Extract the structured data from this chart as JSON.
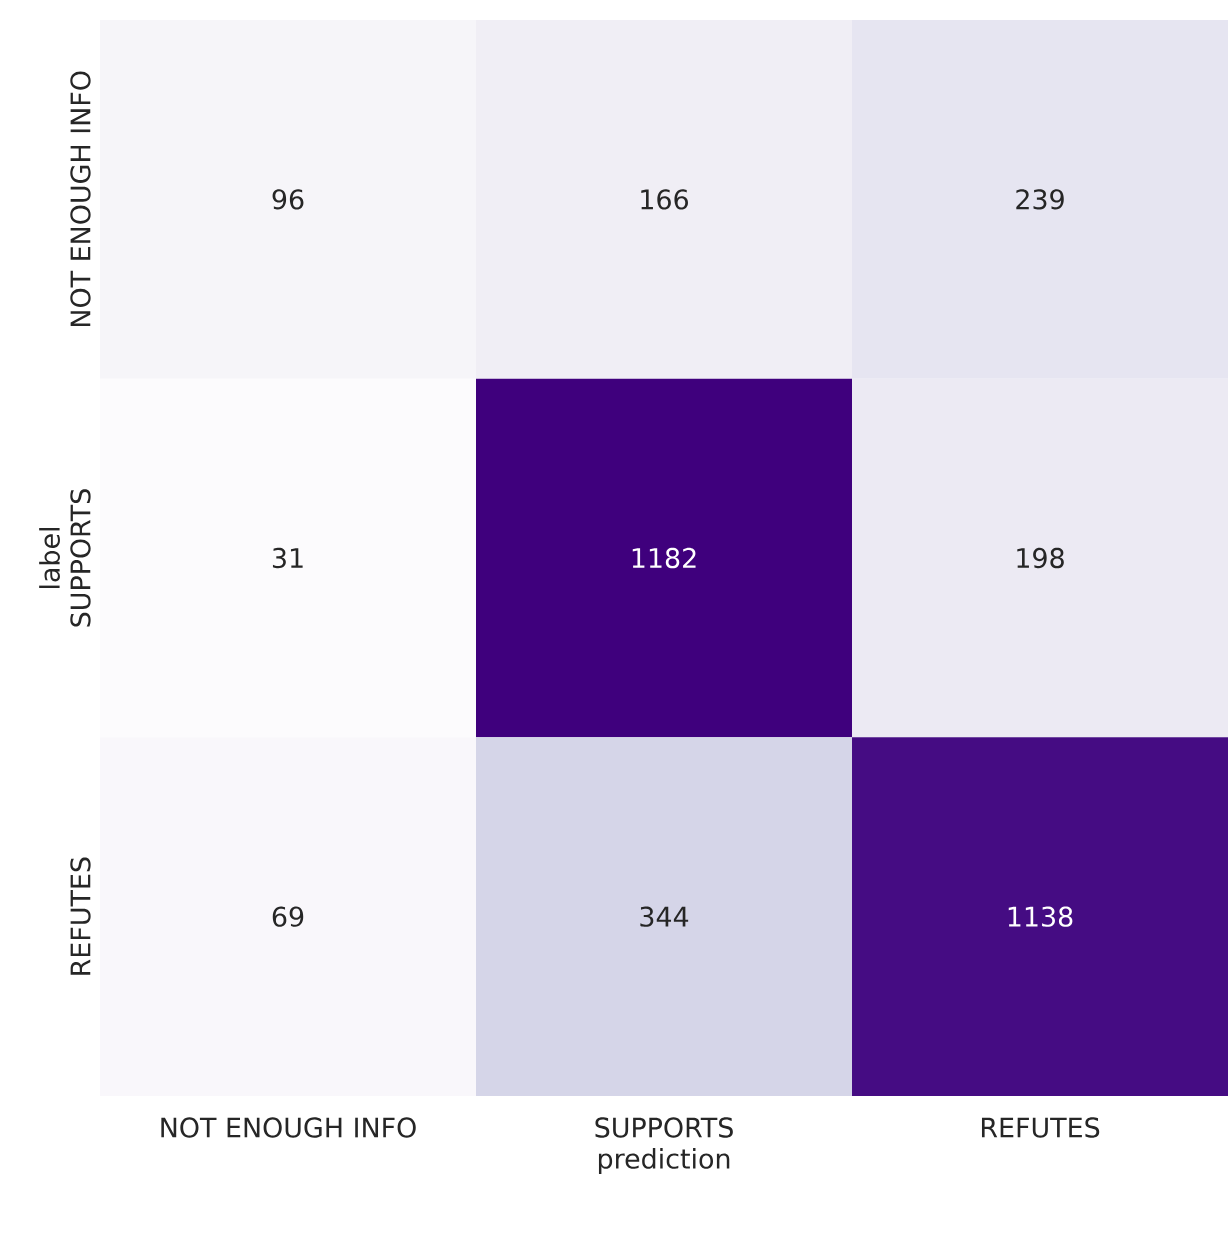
{
  "chart_data": {
    "type": "heatmap",
    "xlabel": "prediction",
    "ylabel": "label",
    "categories": [
      "NOT ENOUGH INFO",
      "SUPPORTS",
      "REFUTES"
    ],
    "y_categories": [
      "NOT ENOUGH INFO",
      "SUPPORTS",
      "REFUTES"
    ],
    "cells": [
      [
        96,
        166,
        239
      ],
      [
        31,
        1182,
        198
      ],
      [
        69,
        344,
        1138
      ]
    ],
    "data_labels": true
  }
}
